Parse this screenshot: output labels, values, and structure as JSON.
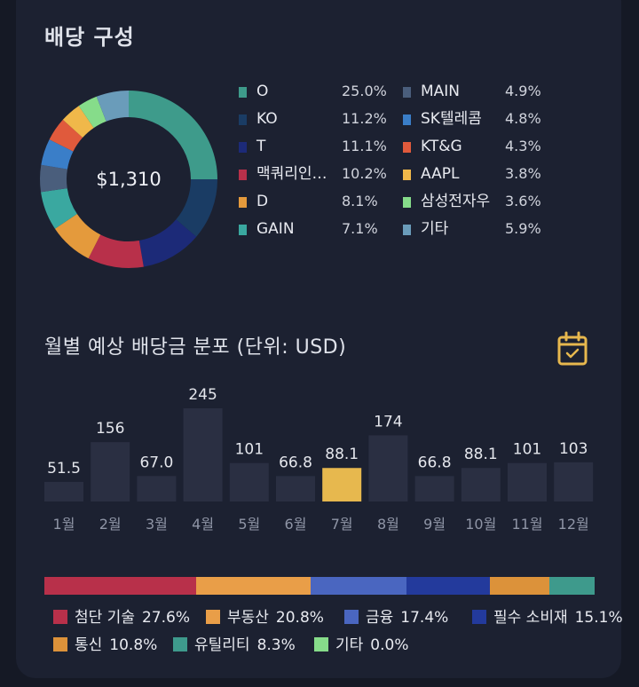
{
  "title": "배당 구성",
  "donut": {
    "total": "$1,310",
    "items": [
      {
        "name": "O",
        "pct": "25.0%",
        "value": 25.0,
        "color": "#3e9b8b"
      },
      {
        "name": "KO",
        "pct": "11.2%",
        "value": 11.2,
        "color": "#1a3c64"
      },
      {
        "name": "T",
        "pct": "11.1%",
        "value": 11.1,
        "color": "#1c2a78"
      },
      {
        "name": "맥쿼리인…",
        "pct": "10.2%",
        "value": 10.2,
        "color": "#b8304a"
      },
      {
        "name": "D",
        "pct": "8.1%",
        "value": 8.1,
        "color": "#e49a3c"
      },
      {
        "name": "GAIN",
        "pct": "7.1%",
        "value": 7.1,
        "color": "#3aa8a0"
      },
      {
        "name": "MAIN",
        "pct": "4.9%",
        "value": 4.9,
        "color": "#4a5e7c"
      },
      {
        "name": "SK텔레콤",
        "pct": "4.8%",
        "value": 4.8,
        "color": "#3a7ec8"
      },
      {
        "name": "KT&G",
        "pct": "4.3%",
        "value": 4.3,
        "color": "#e05a3c"
      },
      {
        "name": "AAPL",
        "pct": "3.8%",
        "value": 3.8,
        "color": "#f0b84a"
      },
      {
        "name": "삼성전자우",
        "pct": "3.6%",
        "value": 3.6,
        "color": "#86dc8a"
      },
      {
        "name": "기타",
        "pct": "5.9%",
        "value": 5.9,
        "color": "#6a9cba"
      }
    ]
  },
  "monthly": {
    "title": "월별 예상 배당금 분포 (단위: USD)",
    "calendar_icon": "calendar-check-icon",
    "highlight_color": "#e7b84e",
    "bar_color": "#2a2f42",
    "chart_data": {
      "type": "bar",
      "categories": [
        "1월",
        "2월",
        "3월",
        "4월",
        "5월",
        "6월",
        "7월",
        "8월",
        "9월",
        "10월",
        "11월",
        "12월"
      ],
      "values": [
        51.5,
        156,
        67.0,
        245,
        101,
        66.8,
        88.1,
        174,
        66.8,
        88.1,
        101,
        103
      ],
      "labels": [
        "51.5",
        "156",
        "67.0",
        "245",
        "101",
        "66.8",
        "88.1",
        "174",
        "66.8",
        "88.1",
        "101",
        "103"
      ],
      "highlight_index": 6
    }
  },
  "sectors": [
    {
      "name": "첨단 기술",
      "pct": "27.6%",
      "value": 27.6,
      "color": "#b8304a"
    },
    {
      "name": "부동산",
      "pct": "20.8%",
      "value": 20.8,
      "color": "#e99e48"
    },
    {
      "name": "금융",
      "pct": "17.4%",
      "value": 17.4,
      "color": "#4a66c0"
    },
    {
      "name": "필수 소비재",
      "pct": "15.1%",
      "value": 15.1,
      "color": "#233a9c"
    },
    {
      "name": "통신",
      "pct": "10.8%",
      "value": 10.8,
      "color": "#dc923a"
    },
    {
      "name": "유틸리티",
      "pct": "8.3%",
      "value": 8.3,
      "color": "#3e9a8c"
    },
    {
      "name": "기타",
      "pct": "0.0%",
      "value": 0.0,
      "color": "#86dc8a"
    }
  ]
}
